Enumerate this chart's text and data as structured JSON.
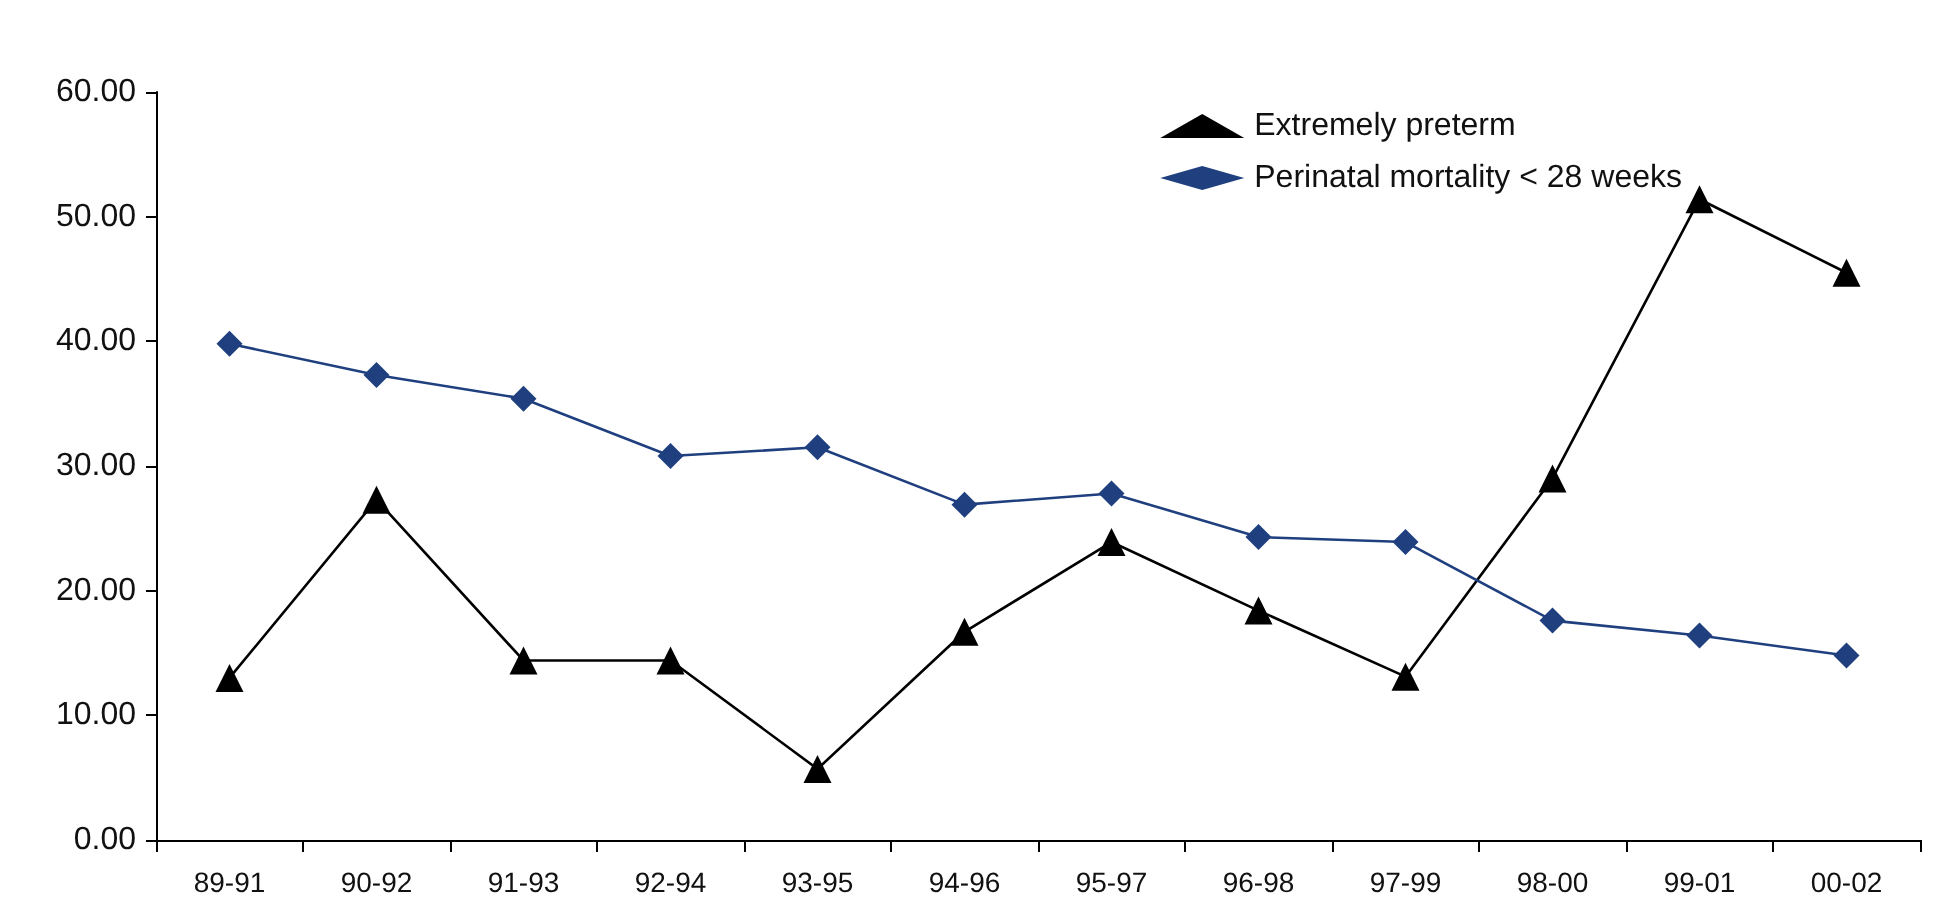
{
  "chart_data": {
    "type": "line",
    "categories": [
      "89-91",
      "90-92",
      "91-93",
      "92-94",
      "93-95",
      "94-96",
      "95-97",
      "96-98",
      "97-99",
      "98-00",
      "99-01",
      "00-02"
    ],
    "series": [
      {
        "name": "Extremely preterm",
        "color": "#000000",
        "marker": "triangle",
        "values": [
          13.0,
          27.3,
          14.4,
          14.4,
          5.7,
          16.7,
          23.9,
          18.4,
          13.1,
          29.0,
          51.4,
          45.5
        ]
      },
      {
        "name": "Perinatal mortality < 28 weeks",
        "color": "#1f3f7f",
        "marker": "diamond",
        "values": [
          39.8,
          37.3,
          35.4,
          30.8,
          31.5,
          26.9,
          27.8,
          24.3,
          23.9,
          17.6,
          16.4,
          14.8
        ]
      }
    ],
    "ylim": [
      0,
      60
    ],
    "yticks": [
      {
        "value": 0,
        "label": "0.00"
      },
      {
        "value": 10,
        "label": "10.00"
      },
      {
        "value": 20,
        "label": "20.00"
      },
      {
        "value": 30,
        "label": "30.00"
      },
      {
        "value": 40,
        "label": "40.00"
      },
      {
        "value": 50,
        "label": "50.00"
      },
      {
        "value": 60,
        "label": "60.00"
      }
    ],
    "grid": false,
    "legend": "top right",
    "line_style": "solid"
  }
}
